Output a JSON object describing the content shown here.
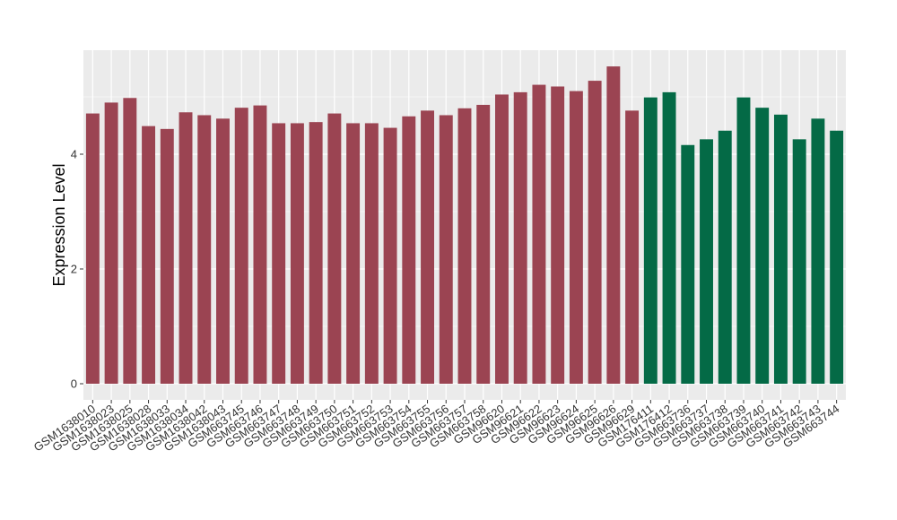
{
  "chart_data": {
    "type": "bar",
    "title": "",
    "xlabel": "",
    "ylabel": "Expression Level",
    "ylim": [
      0,
      5.75
    ],
    "yticks": [
      0,
      2,
      4
    ],
    "grid": true,
    "legend": "none",
    "categories": [
      "GSM1638010",
      "GSM1638023",
      "GSM1638025",
      "GSM1638028",
      "GSM1638033",
      "GSM1638034",
      "GSM1638042",
      "GSM1638043",
      "GSM663745",
      "GSM663746",
      "GSM663747",
      "GSM663748",
      "GSM663749",
      "GSM663750",
      "GSM663751",
      "GSM663752",
      "GSM663753",
      "GSM663754",
      "GSM663755",
      "GSM663756",
      "GSM663757",
      "GSM663758",
      "GSM96620",
      "GSM96621",
      "GSM96622",
      "GSM96623",
      "GSM96624",
      "GSM96625",
      "GSM96626",
      "GSM96629",
      "GSM176411",
      "GSM176412",
      "GSM663736",
      "GSM663737",
      "GSM663738",
      "GSM663739",
      "GSM663740",
      "GSM663741",
      "GSM663742",
      "GSM663743",
      "GSM663744"
    ],
    "values": [
      4.71,
      4.9,
      4.98,
      4.49,
      4.44,
      4.73,
      4.68,
      4.62,
      4.81,
      4.85,
      4.54,
      4.54,
      4.56,
      4.71,
      4.54,
      4.54,
      4.46,
      4.66,
      4.76,
      4.68,
      4.8,
      4.86,
      5.04,
      5.08,
      5.21,
      5.18,
      5.1,
      5.28,
      5.53,
      4.76,
      4.99,
      5.08,
      4.16,
      4.26,
      4.41,
      4.99,
      4.81,
      4.69,
      4.26,
      4.62,
      4.41
    ],
    "groups": [
      0,
      0,
      0,
      0,
      0,
      0,
      0,
      0,
      0,
      0,
      0,
      0,
      0,
      0,
      0,
      0,
      0,
      0,
      0,
      0,
      0,
      0,
      0,
      0,
      0,
      0,
      0,
      0,
      0,
      0,
      1,
      1,
      1,
      1,
      1,
      1,
      1,
      1,
      1,
      1,
      1
    ],
    "colors": [
      "#9b4452",
      "#046a46"
    ],
    "panel_background": "#ebebeb",
    "grid_color": "#ffffff"
  }
}
